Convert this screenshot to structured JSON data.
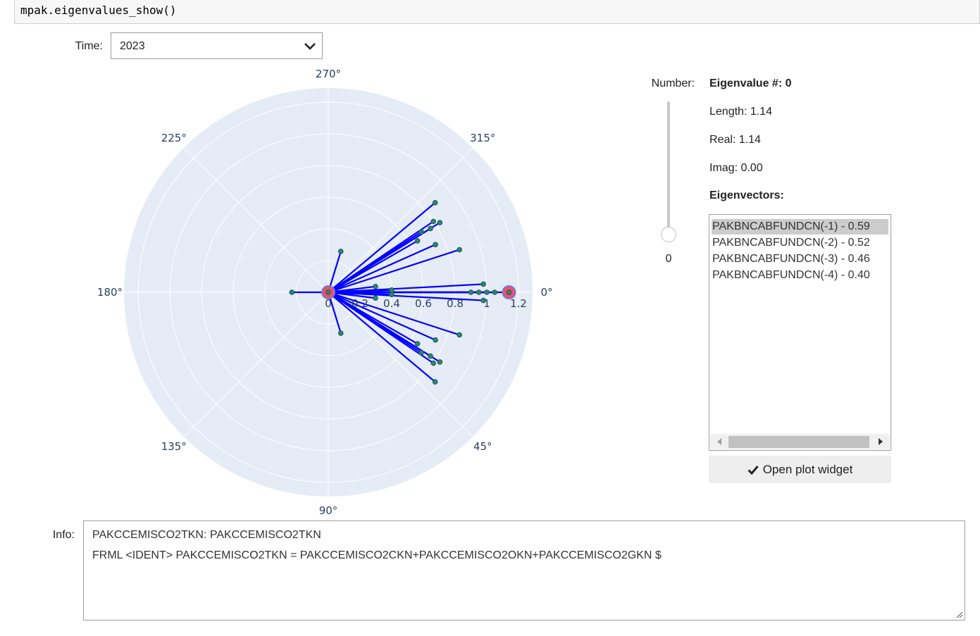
{
  "code": {
    "text": "mpak.eigenvalues_show()"
  },
  "time": {
    "label": "Time:",
    "selected": "2023"
  },
  "polar": {
    "angle_ticks": [
      "270°",
      "315°",
      "0°",
      "45°",
      "90°",
      "135°",
      "180°",
      "225°"
    ],
    "radial_ticks": [
      "0",
      "0.2",
      "0.4",
      "0.6",
      "0.8",
      "1",
      "1.2"
    ],
    "rmax": 1.2,
    "colors": {
      "background": "#e5ecf6",
      "grid": "#ffffff",
      "line": "#0000ff",
      "marker": "#2e8b57",
      "highlight": "#ef5060",
      "highlight_edge": "#7777dd"
    },
    "points": [
      {
        "r": 1.14,
        "theta": 0
      },
      {
        "r": 0.0,
        "theta": 0
      },
      {
        "r": 0.23,
        "theta": 180
      },
      {
        "r": 0.27,
        "theta": 287
      },
      {
        "r": 0.27,
        "theta": 73
      },
      {
        "r": 0.8,
        "theta": 326
      },
      {
        "r": 0.8,
        "theta": 34
      },
      {
        "r": 0.83,
        "theta": 328
      },
      {
        "r": 0.83,
        "theta": 32
      },
      {
        "r": 0.76,
        "theta": 328
      },
      {
        "r": 0.76,
        "theta": 32
      },
      {
        "r": 0.7,
        "theta": 327
      },
      {
        "r": 0.7,
        "theta": 33
      },
      {
        "r": 0.88,
        "theta": 320
      },
      {
        "r": 0.88,
        "theta": 40
      },
      {
        "r": 0.87,
        "theta": 342
      },
      {
        "r": 0.87,
        "theta": 18
      },
      {
        "r": 0.98,
        "theta": 357
      },
      {
        "r": 0.98,
        "theta": 3
      },
      {
        "r": 0.95,
        "theta": 0
      },
      {
        "r": 0.3,
        "theta": 353
      },
      {
        "r": 0.3,
        "theta": 7
      },
      {
        "r": 0.4,
        "theta": 358
      },
      {
        "r": 0.4,
        "theta": 2
      },
      {
        "r": 0.74,
        "theta": 336
      },
      {
        "r": 0.74,
        "theta": 24
      },
      {
        "r": 0.65,
        "theta": 330
      },
      {
        "r": 0.65,
        "theta": 30
      },
      {
        "r": 1.0,
        "theta": 0
      },
      {
        "r": 1.05,
        "theta": 0
      },
      {
        "r": 0.9,
        "theta": 0
      }
    ]
  },
  "number": {
    "label": "Number:",
    "value": "0",
    "level": 0
  },
  "eigen": {
    "title": "Eigenvalue #: 0",
    "length": "Length: 1.14",
    "real": "Real: 1.14",
    "imag": "Imag: 0.00",
    "vectors_heading": "Eigenvectors:",
    "vectors": [
      "PAKBNCABFUNDCN(-1) - 0.59",
      "PAKBNCABFUNDCN(-2) - 0.52",
      "PAKBNCABFUNDCN(-3) - 0.46",
      "PAKBNCABFUNDCN(-4) - 0.40"
    ]
  },
  "open_button": {
    "label": "Open plot widget",
    "icon": "check-icon"
  },
  "info": {
    "label": "Info:",
    "lines": [
      "PAKCCEMISCO2TKN: PAKCCEMISCO2TKN",
      "FRML <IDENT> PAKCCEMISCO2TKN = PAKCCEMISCO2CKN+PAKCCEMISCO2OKN+PAKCCEMISCO2GKN $"
    ]
  }
}
